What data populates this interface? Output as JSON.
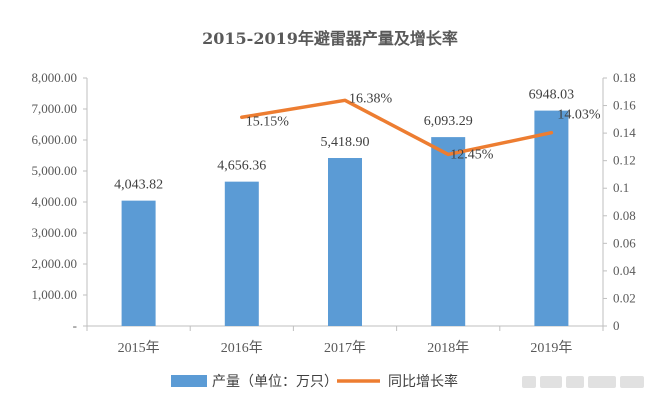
{
  "chart_data": {
    "type": "bar",
    "title": "2015-2019年避雷器产量及增长率",
    "categories": [
      "2015年",
      "2016年",
      "2017年",
      "2018年",
      "2019年"
    ],
    "series": [
      {
        "name": "产量（单位：万只）",
        "type": "bar",
        "axis": "left",
        "values": [
          4043.82,
          4656.36,
          5418.9,
          6093.29,
          6948.03
        ],
        "labels": [
          "4,043.82",
          "4,656.36",
          "5,418.90",
          "6,093.29",
          "6948.03"
        ],
        "color": "#5B9BD5"
      },
      {
        "name": "同比增长率",
        "type": "line",
        "axis": "right",
        "values": [
          null,
          0.1515,
          0.1638,
          0.1245,
          0.1403
        ],
        "labels": [
          "",
          "15.15%",
          "16.38%",
          "12.45%",
          "14.03%"
        ],
        "color": "#ED7D31"
      }
    ],
    "y_left": {
      "ylim": [
        0,
        8000
      ],
      "ticks": [
        0,
        1000,
        2000,
        3000,
        4000,
        5000,
        6000,
        7000,
        8000
      ],
      "tick_labels": [
        "-",
        "1,000.00",
        "2,000.00",
        "3,000.00",
        "4,000.00",
        "5,000.00",
        "6,000.00",
        "7,000.00",
        "8,000.00"
      ]
    },
    "y_right": {
      "ylim": [
        0,
        0.18
      ],
      "ticks": [
        0,
        0.02,
        0.04,
        0.06,
        0.08,
        0.1,
        0.12,
        0.14,
        0.16,
        0.18
      ],
      "tick_labels": [
        "0",
        "0.02",
        "0.04",
        "0.06",
        "0.08",
        "0.1",
        "0.12",
        "0.14",
        "0.16",
        "0.18"
      ]
    },
    "grid": false,
    "legend_position": "bottom"
  }
}
